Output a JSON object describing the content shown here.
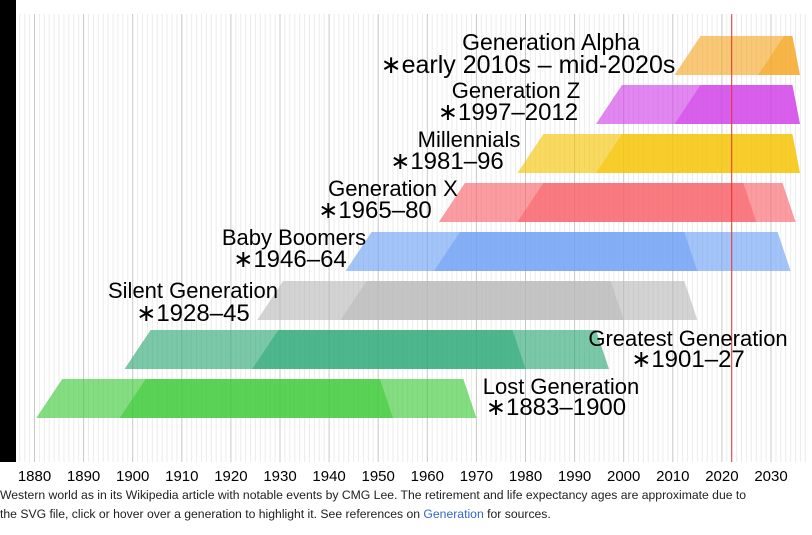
{
  "chart_data": {
    "type": "timeline",
    "x_axis": {
      "range": [
        1874,
        2037
      ],
      "ticks": [
        1880,
        1890,
        1900,
        1910,
        1920,
        1930,
        1940,
        1950,
        1960,
        1970,
        1980,
        1990,
        2000,
        2010,
        2020,
        2030
      ],
      "tick_labels": [
        "1880",
        "1890",
        "1900",
        "1910",
        "1920",
        "1930",
        "1940",
        "1950",
        "1960",
        "1970",
        "1980",
        "1990",
        "2000",
        "2010",
        "2020",
        "2030"
      ]
    },
    "current_year_marker": 2022,
    "generations": [
      {
        "name": "Generation Alpha",
        "years": "∗early 2010s – mid-2020s",
        "color": "#f5a623",
        "band": [
          2013,
          2037
        ],
        "core": [
          2030,
          2037
        ]
      },
      {
        "name": "Generation Z",
        "years": "∗1997–2012",
        "color": "#d03ee8",
        "band": [
          1997,
          2037
        ],
        "core": [
          2013,
          2037
        ]
      },
      {
        "name": "Millennials",
        "years": "∗1981–96",
        "color": "#f6c300",
        "band": [
          1981,
          2037
        ],
        "core": [
          1997,
          2037
        ]
      },
      {
        "name": "Generation X",
        "years": "∗1965–80",
        "color": "#f75f66",
        "band": [
          1965,
          2035
        ],
        "core": [
          1981,
          2027
        ]
      },
      {
        "name": "Baby Boomers",
        "years": "∗1946–64",
        "color": "#6b9ff5",
        "band": [
          1946,
          2034
        ],
        "core": [
          1964,
          2015
        ]
      },
      {
        "name": "Silent Generation",
        "years": "∗1928–45",
        "color": "#b8b8b8",
        "band": [
          1928,
          2015
        ],
        "core": [
          1945,
          2000
        ]
      },
      {
        "name": "Greatest Generation",
        "years": "∗1901–27",
        "color": "#2aa775",
        "band": [
          1901,
          1997
        ],
        "core": [
          1927,
          1980
        ]
      },
      {
        "name": "Lost Generation",
        "years": "∗1883–1900",
        "color": "#39c933",
        "band": [
          1883,
          1970
        ],
        "core": [
          1900,
          1953
        ]
      }
    ]
  },
  "caption": {
    "line1": "Western world as in its Wikipedia article with notable events by CMG Lee. The retirement and life expectancy ages are approximate due to",
    "line2_pre": "the SVG file, click or hover over a generation to highlight it. See references on ",
    "line2_link": "Generation",
    "line2_post": " for sources."
  }
}
